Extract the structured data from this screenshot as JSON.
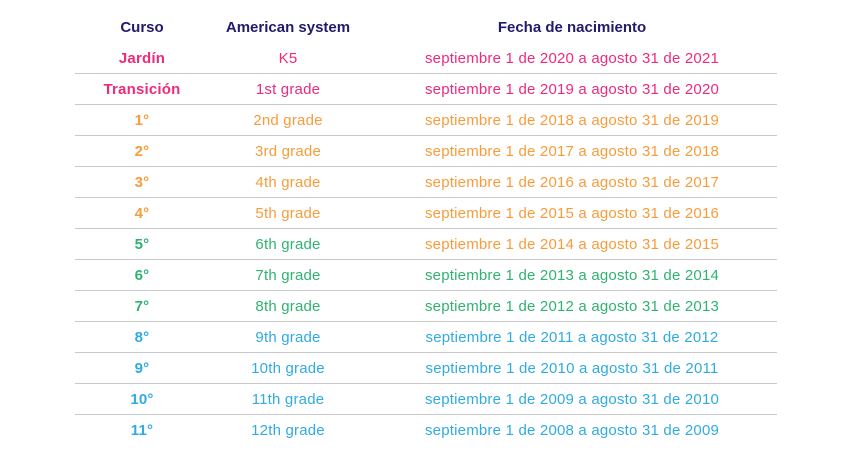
{
  "colors": {
    "header": "#221a6b",
    "pink": "#ee2a7c",
    "orange": "#f89c3b",
    "green": "#30b272",
    "blue": "#30abe2",
    "divider": "#c9c9c9"
  },
  "table": {
    "headers": [
      "Curso",
      "American system",
      "Fecha de nacimiento"
    ],
    "rows": [
      {
        "curso": "Jardín",
        "grade": "K5",
        "birth": "septiembre 1 de 2020 a agosto 31 de 2021",
        "color": "pink",
        "birth_color": "pink"
      },
      {
        "curso": "Transición",
        "grade": "1st grade",
        "birth": "septiembre 1 de 2019 a agosto 31 de 2020",
        "color": "pink",
        "birth_color": "pink"
      },
      {
        "curso": "1°",
        "grade": "2nd grade",
        "birth": "septiembre 1 de 2018 a agosto 31 de 2019",
        "color": "orange",
        "birth_color": "orange"
      },
      {
        "curso": "2°",
        "grade": "3rd grade",
        "birth": "septiembre 1 de 2017 a agosto 31 de 2018",
        "color": "orange",
        "birth_color": "orange"
      },
      {
        "curso": "3°",
        "grade": "4th grade",
        "birth": "septiembre 1 de 2016 a agosto 31 de 2017",
        "color": "orange",
        "birth_color": "orange"
      },
      {
        "curso": "4°",
        "grade": "5th grade",
        "birth": "septiembre 1 de 2015 a agosto 31 de 2016",
        "color": "orange",
        "birth_color": "orange"
      },
      {
        "curso": "5°",
        "grade": "6th grade",
        "birth": "septiembre 1 de 2014 a agosto 31 de 2015",
        "color": "green",
        "birth_color": "orange"
      },
      {
        "curso": "6°",
        "grade": "7th grade",
        "birth": "septiembre 1 de 2013 a agosto 31 de 2014",
        "color": "green",
        "birth_color": "green"
      },
      {
        "curso": "7°",
        "grade": "8th grade",
        "birth": "septiembre 1 de 2012 a agosto 31 de 2013",
        "color": "green",
        "birth_color": "green"
      },
      {
        "curso": "8°",
        "grade": "9th grade",
        "birth": "septiembre 1 de 2011 a agosto 31 de 2012",
        "color": "blue",
        "birth_color": "blue"
      },
      {
        "curso": "9°",
        "grade": "10th grade",
        "birth": "septiembre 1 de 2010 a agosto 31 de 2011",
        "color": "blue",
        "birth_color": "blue"
      },
      {
        "curso": "10°",
        "grade": "11th grade",
        "birth": "septiembre 1 de 2009 a agosto 31 de 2010",
        "color": "blue",
        "birth_color": "blue"
      },
      {
        "curso": "11°",
        "grade": "12th grade",
        "birth": "septiembre 1 de 2008 a agosto 31 de 2009",
        "color": "blue",
        "birth_color": "blue"
      }
    ]
  }
}
